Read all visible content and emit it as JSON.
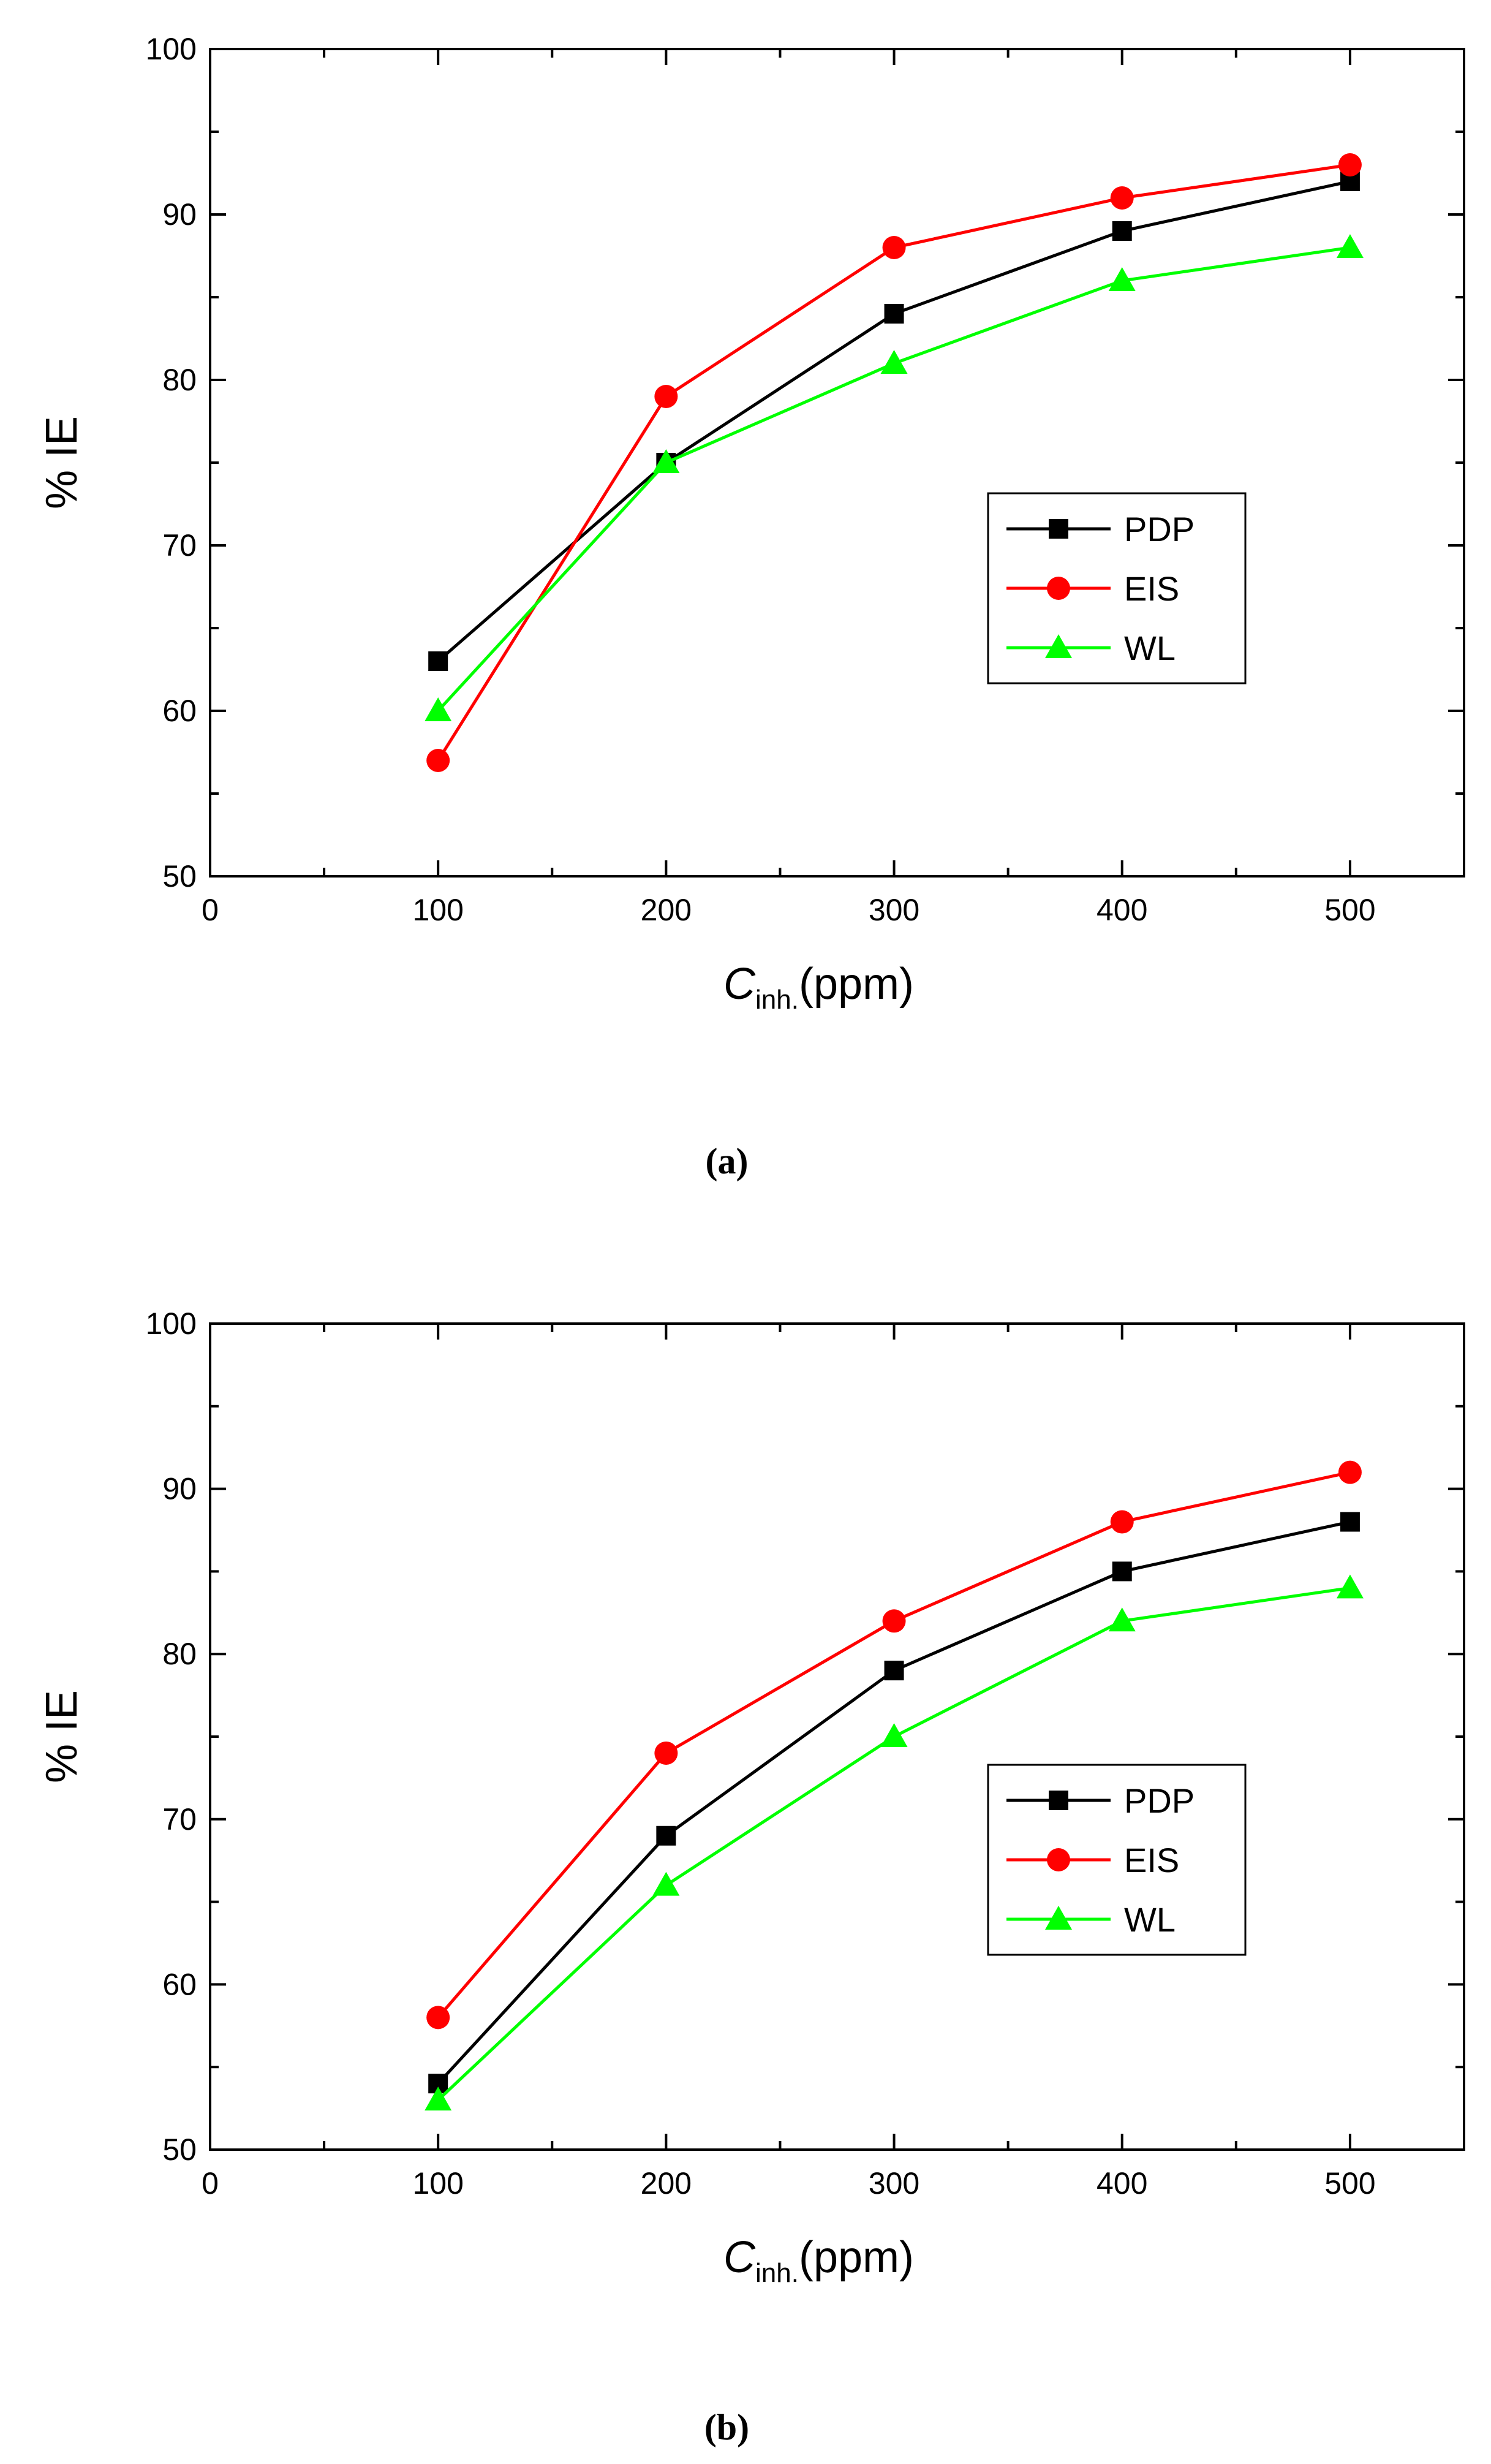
{
  "chart_data": [
    {
      "type": "line",
      "panel_label": "(a)",
      "xlabel_main": "C",
      "xlabel_sub": "inh.",
      "xlabel_unit": "(ppm)",
      "ylabel": "% IE",
      "xlim": [
        0,
        550
      ],
      "ylim": [
        50,
        100
      ],
      "x_ticks": [
        0,
        100,
        200,
        300,
        400,
        500
      ],
      "y_ticks": [
        50,
        60,
        70,
        80,
        90,
        100
      ],
      "x": [
        100,
        200,
        300,
        400,
        500
      ],
      "legend_position": "center-right",
      "series": [
        {
          "name": "PDP",
          "color": "#000000",
          "marker": "square",
          "values": [
            63,
            75,
            84,
            89,
            92
          ]
        },
        {
          "name": "EIS",
          "color": "#ff0000",
          "marker": "circle",
          "values": [
            57,
            79,
            88,
            91,
            93
          ]
        },
        {
          "name": "WL",
          "color": "#00ff00",
          "marker": "triangle",
          "values": [
            60,
            75,
            81,
            86,
            88
          ]
        }
      ]
    },
    {
      "type": "line",
      "panel_label": "(b)",
      "xlabel_main": "C",
      "xlabel_sub": "inh.",
      "xlabel_unit": "(ppm)",
      "ylabel": "% IE",
      "xlim": [
        0,
        550
      ],
      "ylim": [
        50,
        100
      ],
      "x_ticks": [
        0,
        100,
        200,
        300,
        400,
        500
      ],
      "y_ticks": [
        50,
        60,
        70,
        80,
        90,
        100
      ],
      "x": [
        100,
        200,
        300,
        400,
        500
      ],
      "legend_position": "lower-right",
      "series": [
        {
          "name": "PDP",
          "color": "#000000",
          "marker": "square",
          "values": [
            54,
            69,
            79,
            85,
            88
          ]
        },
        {
          "name": "EIS",
          "color": "#ff0000",
          "marker": "circle",
          "values": [
            58,
            74,
            82,
            88,
            91
          ]
        },
        {
          "name": "WL",
          "color": "#00ff00",
          "marker": "triangle",
          "values": [
            53,
            66,
            75,
            82,
            84
          ]
        }
      ]
    }
  ]
}
